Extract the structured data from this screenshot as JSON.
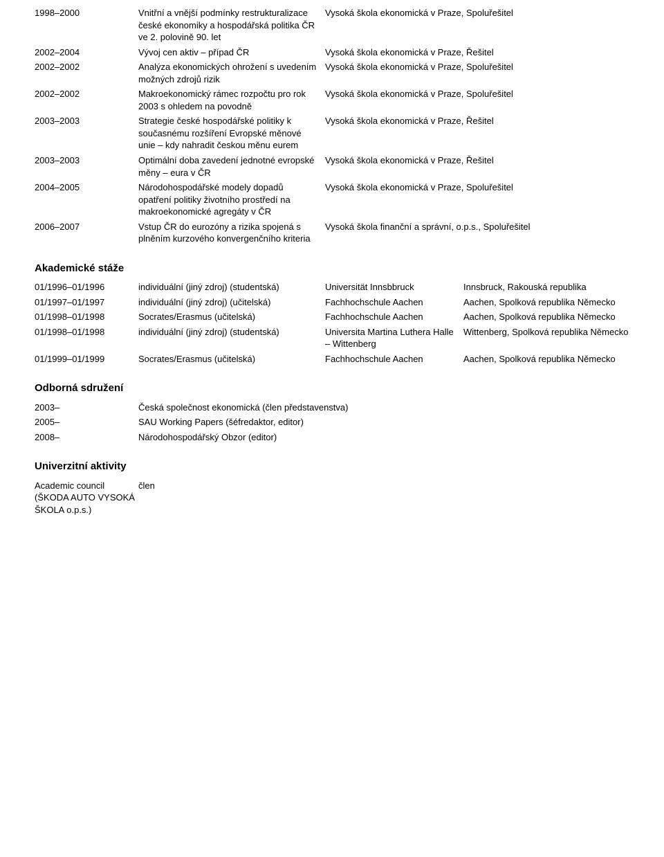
{
  "research": [
    {
      "years": "1998–2000",
      "desc": "Vnitřní a vnější podmínky restrukturalizace české ekonomiky a hospodářská politika ČR ve 2. polovině 90. let",
      "inst": "Vysoká škola ekonomická v Praze, Spoluřešitel"
    },
    {
      "years": "2002–2004",
      "desc": "Vývoj cen aktiv – případ ČR",
      "inst": "Vysoká škola ekonomická v Praze, Řešitel"
    },
    {
      "years": "2002–2002",
      "desc": "Analýza ekonomických ohrožení s uvedením možných zdrojů rizik",
      "inst": "Vysoká škola ekonomická v Praze, Spoluřešitel"
    },
    {
      "years": "2002–2002",
      "desc": "Makroekonomický rámec rozpočtu pro rok 2003 s ohledem na povodně",
      "inst": "Vysoká škola ekonomická v Praze, Spoluřešitel"
    },
    {
      "years": "2003–2003",
      "desc": "Strategie české hospodářské politiky k současnému rozšíření Evropské měnové unie – kdy nahradit českou měnu eurem",
      "inst": "Vysoká škola ekonomická v Praze, Řešitel"
    },
    {
      "years": "2003–2003",
      "desc": "Optimální doba zavedení jednotné evropské měny – eura v ČR",
      "inst": "Vysoká škola ekonomická v Praze, Řešitel"
    },
    {
      "years": "2004–2005",
      "desc": "Národohospodářské modely dopadů opatření politiky životního prostředí na makroekonomické agregáty v ČR",
      "inst": "Vysoká škola ekonomická v Praze, Spoluřešitel"
    },
    {
      "years": "2006–2007",
      "desc": "Vstup ČR do eurozóny a rizika spojená s plněním kurzového konvergenčního kriteria",
      "inst": "Vysoká škola finanční a správní, o.p.s., Spoluřešitel"
    }
  ],
  "academic_stays_heading": "Akademické stáže",
  "academic_stays": [
    {
      "years": "01/1996–01/1996",
      "type": "individuální (jiný zdroj) (studentská)",
      "uni": "Universität Innsbbruck",
      "loc": "Innsbruck, Rakouská republika"
    },
    {
      "years": "01/1997–01/1997",
      "type": "individuální (jiný zdroj) (učitelská)",
      "uni": "Fachhochschule Aachen",
      "loc": "Aachen, Spolková republika Německo"
    },
    {
      "years": "01/1998–01/1998",
      "type": "Socrates/Erasmus (učitelská)",
      "uni": "Fachhochschule Aachen",
      "loc": "Aachen, Spolková republika Německo"
    },
    {
      "years": "01/1998–01/1998",
      "type": "individuální (jiný zdroj) (studentská)",
      "uni": "Universita Martina Luthera Halle – Wittenberg",
      "loc": "Wittenberg, Spolková republika Německo"
    },
    {
      "years": "01/1999–01/1999",
      "type": "Socrates/Erasmus (učitelská)",
      "uni": "Fachhochschule Aachen",
      "loc": "Aachen, Spolková republika Německo"
    }
  ],
  "associations_heading": "Odborná sdružení",
  "associations": [
    {
      "years": "2003–",
      "text": "Česká společnost ekonomická (člen představenstva)"
    },
    {
      "years": "2005–",
      "text": "SAU Working Papers (šéfredaktor, editor)"
    },
    {
      "years": "2008–",
      "text": "Národohospodářský Obzor (editor)"
    }
  ],
  "university_activities_heading": "Univerzitní aktivity",
  "university_activities": [
    {
      "body": "Academic council (ŠKODA AUTO VYSOKÁ ŠKOLA o.p.s.)",
      "role": "člen"
    }
  ]
}
